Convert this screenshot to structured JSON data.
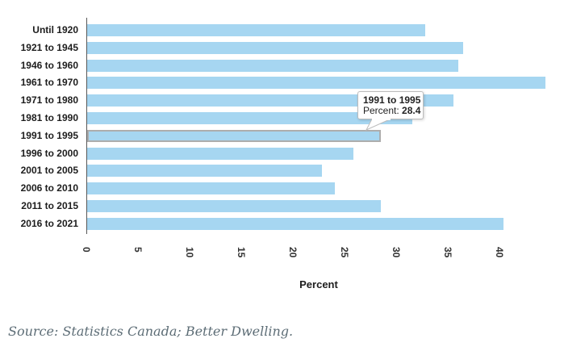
{
  "chart_data": {
    "type": "bar",
    "orientation": "horizontal",
    "categories": [
      "Until 1920",
      "1921 to 1945",
      "1946 to 1960",
      "1961 to 1970",
      "1971 to 1980",
      "1981 to 1990",
      "1991 to 1995",
      "1996 to 2000",
      "2001 to 2005",
      "2006 to 2010",
      "2011 to 2015",
      "2016 to 2021"
    ],
    "values": [
      32.7,
      36.4,
      35.9,
      44.4,
      35.5,
      31.5,
      28.4,
      25.8,
      22.7,
      24.0,
      28.4,
      40.3
    ],
    "xlabel": "Percent",
    "xticks": [
      0,
      5,
      10,
      15,
      20,
      25,
      30,
      35,
      40
    ],
    "xlim": [
      0,
      46
    ],
    "grid": false,
    "legend": "none",
    "bar_color": "#a6d6f1",
    "highlighted_category": "1991 to 1995",
    "highlighted_index": 6
  },
  "tooltip": {
    "title": "1991 to 1995",
    "label": "Percent: ",
    "value": "28.4"
  },
  "source": {
    "text": "Source: Statistics Canada; Better Dwelling."
  },
  "colors": {
    "bar": "#a6d6f1",
    "highlight_stroke": "#adadad",
    "axis_line": "#565656",
    "category_text": "#1d1d1d",
    "tick_text": "#333333",
    "tooltip_border": "#bcbcbc",
    "source_text": "#5d6d76"
  }
}
